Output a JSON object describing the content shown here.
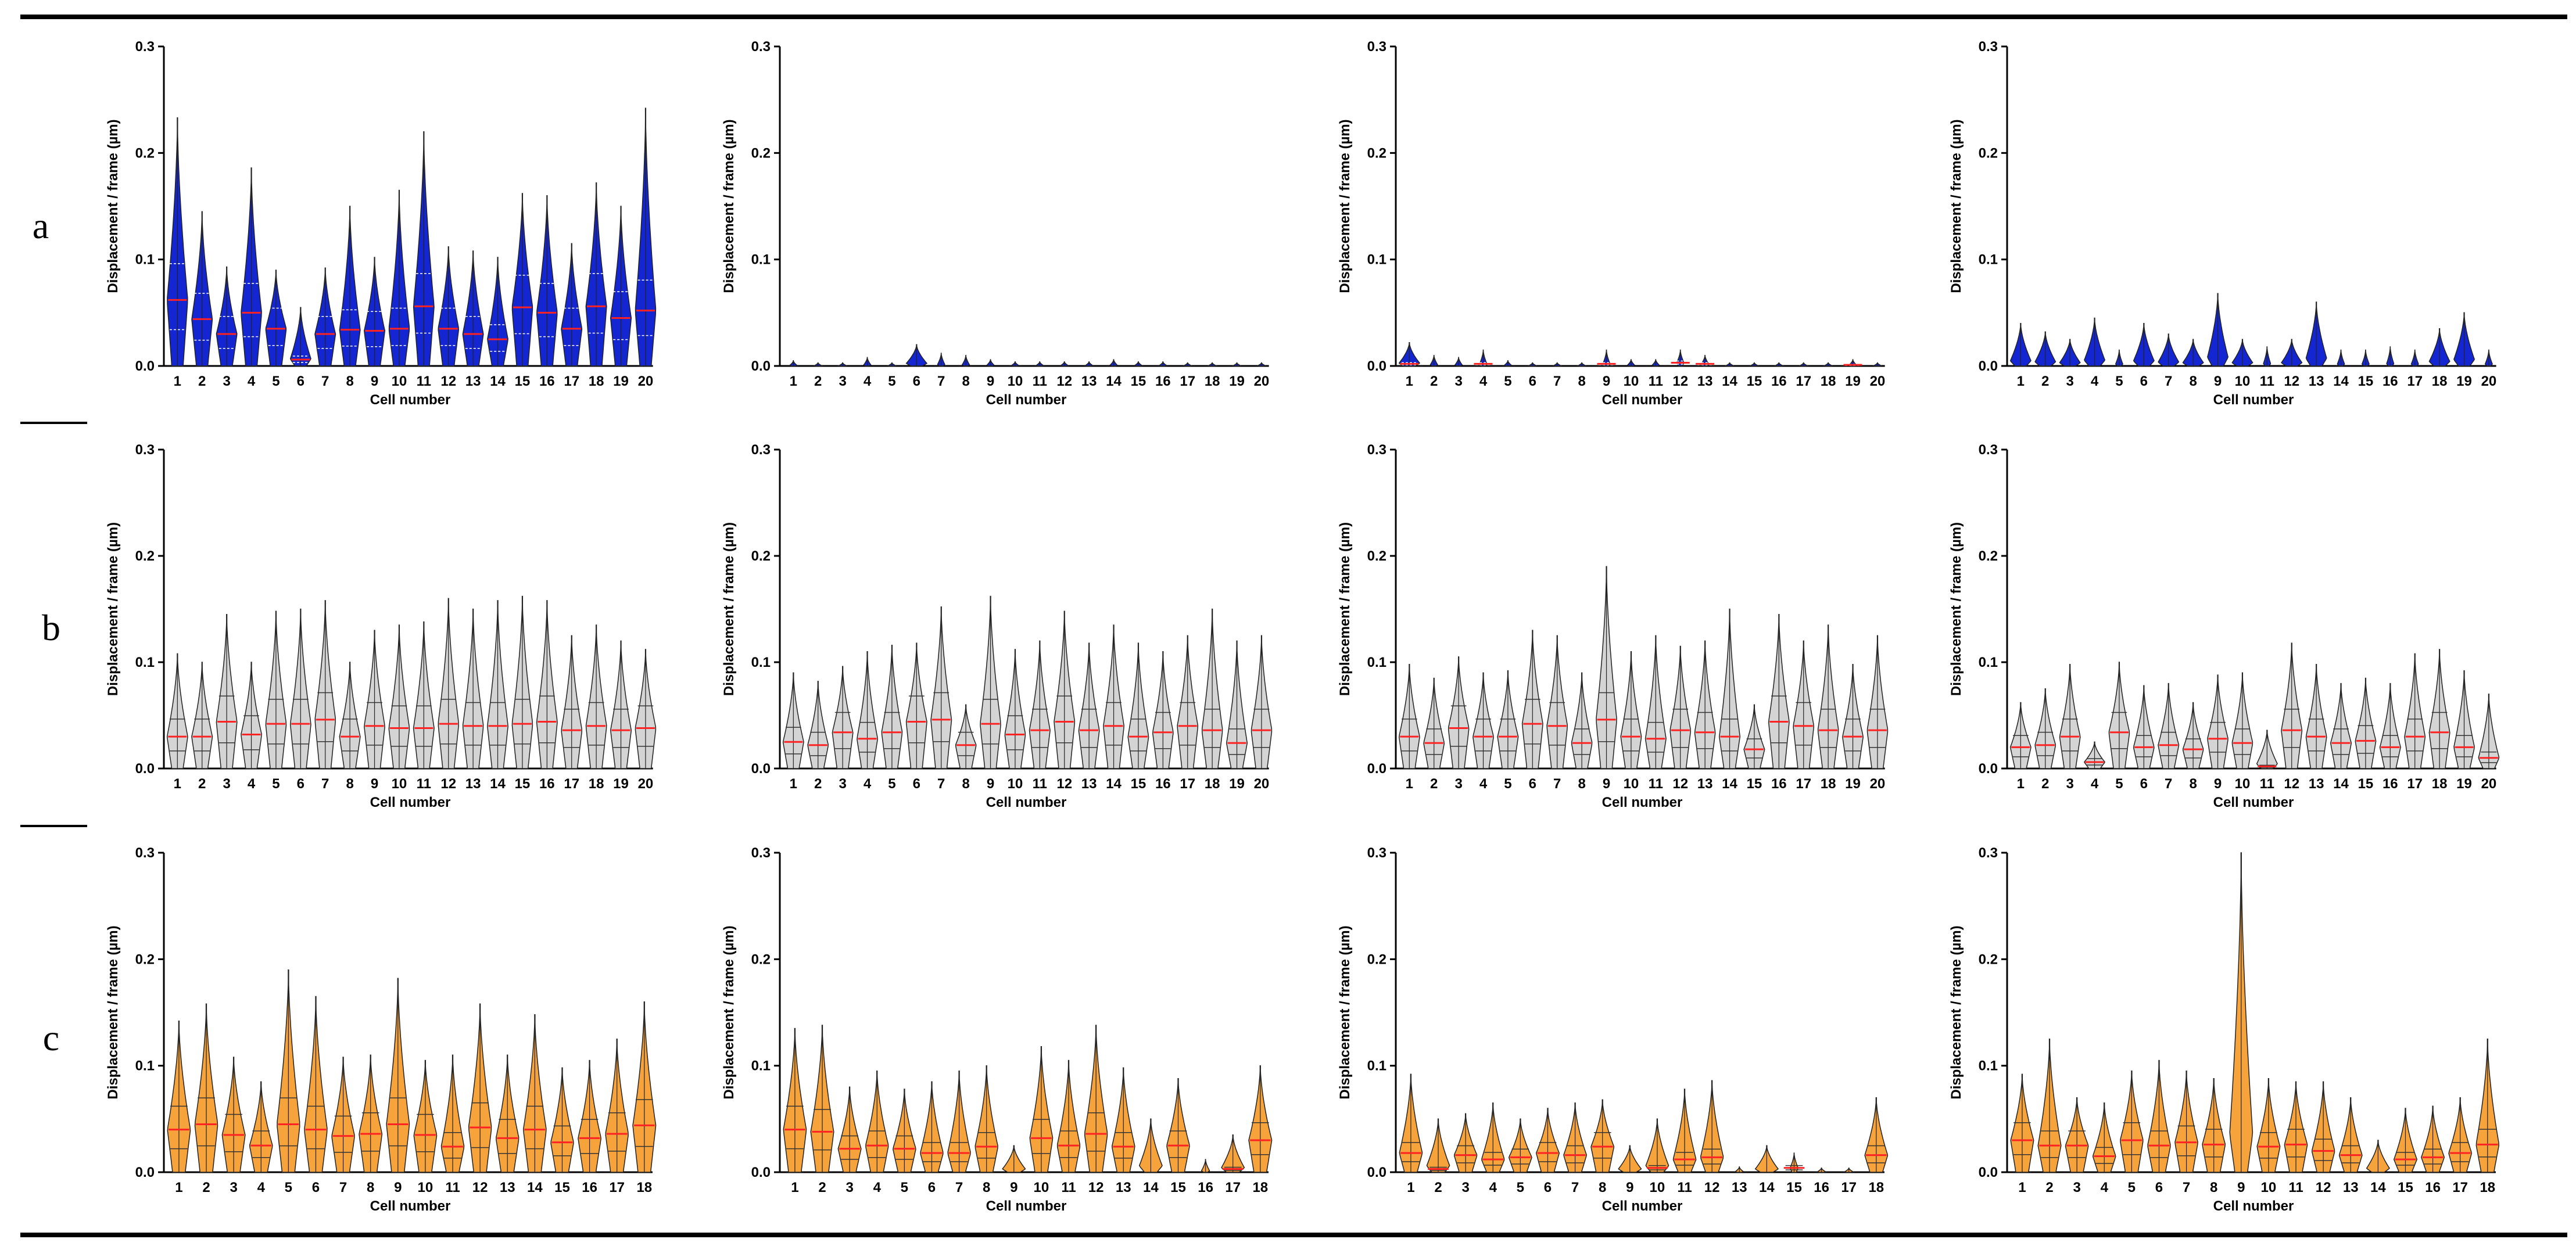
{
  "figure": {
    "row_labels": [
      "a",
      "b",
      "c"
    ],
    "common": {
      "xlabel": "Cell number",
      "ylabel": "Displacement / frame (µm)",
      "ylim": [
        0,
        0.3
      ],
      "yticks": [
        "0.0",
        "0.1",
        "0.2",
        "0.3"
      ]
    },
    "colors": {
      "blue": "#1426d2",
      "gray": "#d4d4d4",
      "orange": "#f7a33b",
      "median": "#ff2222",
      "quartile_blue": "#ffffff",
      "quartile": "#333333",
      "outline": "#222222",
      "rule": "#000000"
    }
  },
  "chart_data": [
    {
      "row": "a",
      "col": 1,
      "type": "violin",
      "fill": "blue",
      "title": "",
      "xlabel": "Cell number",
      "ylabel": "Displacement / frame (µm)",
      "ylim": [
        0,
        0.3
      ],
      "categories": [
        "1",
        "2",
        "3",
        "4",
        "5",
        "6",
        "7",
        "8",
        "9",
        "10",
        "11",
        "12",
        "13",
        "14",
        "15",
        "16",
        "17",
        "18",
        "19",
        "20"
      ],
      "medians": [
        0.062,
        0.044,
        0.03,
        0.05,
        0.035,
        0.006,
        0.03,
        0.034,
        0.033,
        0.035,
        0.056,
        0.035,
        0.03,
        0.025,
        0.055,
        0.05,
        0.035,
        0.056,
        0.045,
        0.052
      ],
      "maxes": [
        0.233,
        0.145,
        0.093,
        0.186,
        0.09,
        0.055,
        0.092,
        0.15,
        0.102,
        0.165,
        0.22,
        0.112,
        0.108,
        0.102,
        0.162,
        0.16,
        0.115,
        0.172,
        0.15,
        0.242
      ]
    },
    {
      "row": "a",
      "col": 2,
      "type": "violin",
      "fill": "blue",
      "title": "",
      "xlabel": "Cell number",
      "ylabel": "Displacement / frame (µm)",
      "ylim": [
        0,
        0.3
      ],
      "categories": [
        "1",
        "2",
        "3",
        "4",
        "5",
        "6",
        "7",
        "8",
        "9",
        "10",
        "11",
        "12",
        "13",
        "14",
        "15",
        "16",
        "17",
        "18",
        "19",
        "20"
      ],
      "medians": [
        0,
        0,
        0,
        0,
        0,
        0,
        0,
        0,
        0,
        0,
        0,
        0,
        0,
        0,
        0,
        0,
        0,
        0,
        0,
        0
      ],
      "maxes": [
        0.005,
        0.003,
        0.003,
        0.008,
        0.003,
        0.02,
        0.012,
        0.01,
        0.006,
        0.004,
        0.004,
        0.004,
        0.004,
        0.006,
        0.004,
        0.004,
        0.003,
        0.003,
        0.003,
        0.003
      ]
    },
    {
      "row": "a",
      "col": 3,
      "type": "violin",
      "fill": "blue",
      "title": "",
      "xlabel": "Cell number",
      "ylabel": "Displacement / frame (µm)",
      "ylim": [
        0,
        0.3
      ],
      "categories": [
        "1",
        "2",
        "3",
        "4",
        "5",
        "6",
        "7",
        "8",
        "9",
        "10",
        "11",
        "12",
        "13",
        "14",
        "15",
        "16",
        "17",
        "18",
        "19",
        "20"
      ],
      "medians": [
        0.002,
        0,
        0,
        0.002,
        0,
        0,
        0,
        0,
        0.002,
        0,
        0,
        0.003,
        0.002,
        0,
        0,
        0,
        0,
        0,
        0.001,
        0
      ],
      "maxes": [
        0.022,
        0.01,
        0.008,
        0.015,
        0.005,
        0.003,
        0.003,
        0.003,
        0.015,
        0.006,
        0.006,
        0.015,
        0.01,
        0.003,
        0.003,
        0.003,
        0.003,
        0.003,
        0.006,
        0.003
      ]
    },
    {
      "row": "a",
      "col": 4,
      "type": "violin",
      "fill": "blue",
      "title": "",
      "xlabel": "Cell number",
      "ylabel": "Displacement / frame (µm)",
      "ylim": [
        0,
        0.3
      ],
      "categories": [
        "1",
        "2",
        "3",
        "4",
        "5",
        "6",
        "7",
        "8",
        "9",
        "10",
        "11",
        "12",
        "13",
        "14",
        "15",
        "16",
        "17",
        "18",
        "19",
        "20"
      ],
      "medians": [
        0,
        0,
        0,
        0,
        0,
        0,
        0,
        0,
        0,
        0,
        0,
        0,
        0,
        0,
        0,
        0,
        0,
        0,
        0,
        0
      ],
      "maxes": [
        0.04,
        0.032,
        0.025,
        0.045,
        0.015,
        0.04,
        0.03,
        0.025,
        0.068,
        0.025,
        0.018,
        0.025,
        0.06,
        0.015,
        0.015,
        0.018,
        0.015,
        0.035,
        0.05,
        0.015
      ]
    },
    {
      "row": "b",
      "col": 1,
      "type": "violin",
      "fill": "gray",
      "title": "",
      "xlabel": "Cell number",
      "ylabel": "Displacement / frame (µm)",
      "ylim": [
        0,
        0.3
      ],
      "categories": [
        "1",
        "2",
        "3",
        "4",
        "5",
        "6",
        "7",
        "8",
        "9",
        "10",
        "11",
        "12",
        "13",
        "14",
        "15",
        "16",
        "17",
        "18",
        "19",
        "20"
      ],
      "medians": [
        0.03,
        0.03,
        0.044,
        0.032,
        0.042,
        0.042,
        0.046,
        0.03,
        0.04,
        0.038,
        0.038,
        0.042,
        0.04,
        0.04,
        0.042,
        0.044,
        0.036,
        0.04,
        0.036,
        0.038
      ],
      "maxes": [
        0.108,
        0.1,
        0.145,
        0.1,
        0.148,
        0.15,
        0.158,
        0.1,
        0.13,
        0.135,
        0.138,
        0.16,
        0.15,
        0.158,
        0.162,
        0.158,
        0.125,
        0.135,
        0.12,
        0.112
      ]
    },
    {
      "row": "b",
      "col": 2,
      "type": "violin",
      "fill": "gray",
      "title": "",
      "xlabel": "Cell number",
      "ylabel": "Displacement / frame (µm)",
      "ylim": [
        0,
        0.3
      ],
      "categories": [
        "1",
        "2",
        "3",
        "4",
        "5",
        "6",
        "7",
        "8",
        "9",
        "10",
        "11",
        "12",
        "13",
        "14",
        "15",
        "16",
        "17",
        "18",
        "19",
        "20"
      ],
      "medians": [
        0.025,
        0.022,
        0.034,
        0.028,
        0.034,
        0.044,
        0.046,
        0.022,
        0.042,
        0.032,
        0.036,
        0.044,
        0.036,
        0.04,
        0.03,
        0.034,
        0.04,
        0.036,
        0.024,
        0.036
      ],
      "maxes": [
        0.09,
        0.082,
        0.096,
        0.11,
        0.116,
        0.118,
        0.152,
        0.06,
        0.162,
        0.112,
        0.12,
        0.148,
        0.118,
        0.135,
        0.118,
        0.11,
        0.125,
        0.15,
        0.12,
        0.125
      ]
    },
    {
      "row": "b",
      "col": 3,
      "type": "violin",
      "fill": "gray",
      "title": "",
      "xlabel": "Cell number",
      "ylabel": "Displacement / frame (µm)",
      "ylim": [
        0,
        0.3
      ],
      "categories": [
        "1",
        "2",
        "3",
        "4",
        "5",
        "6",
        "7",
        "8",
        "9",
        "10",
        "11",
        "12",
        "13",
        "14",
        "15",
        "16",
        "17",
        "18",
        "19",
        "20"
      ],
      "medians": [
        0.03,
        0.024,
        0.038,
        0.03,
        0.03,
        0.042,
        0.04,
        0.024,
        0.046,
        0.03,
        0.028,
        0.036,
        0.034,
        0.03,
        0.018,
        0.044,
        0.04,
        0.036,
        0.03,
        0.036
      ],
      "maxes": [
        0.098,
        0.085,
        0.105,
        0.09,
        0.092,
        0.13,
        0.125,
        0.09,
        0.19,
        0.11,
        0.125,
        0.115,
        0.12,
        0.15,
        0.06,
        0.145,
        0.12,
        0.135,
        0.098,
        0.125
      ]
    },
    {
      "row": "b",
      "col": 4,
      "type": "violin",
      "fill": "gray",
      "title": "",
      "xlabel": "Cell number",
      "ylabel": "Displacement / frame (µm)",
      "ylim": [
        0,
        0.3
      ],
      "categories": [
        "1",
        "2",
        "3",
        "4",
        "5",
        "6",
        "7",
        "8",
        "9",
        "10",
        "11",
        "12",
        "13",
        "14",
        "15",
        "16",
        "17",
        "18",
        "19",
        "20"
      ],
      "medians": [
        0.02,
        0.022,
        0.03,
        0.006,
        0.034,
        0.02,
        0.022,
        0.018,
        0.028,
        0.024,
        0.002,
        0.036,
        0.03,
        0.024,
        0.026,
        0.02,
        0.03,
        0.034,
        0.02,
        0.01
      ],
      "maxes": [
        0.062,
        0.075,
        0.098,
        0.025,
        0.1,
        0.078,
        0.08,
        0.062,
        0.088,
        0.09,
        0.036,
        0.118,
        0.098,
        0.08,
        0.085,
        0.08,
        0.108,
        0.112,
        0.092,
        0.07
      ]
    },
    {
      "row": "c",
      "col": 1,
      "type": "violin",
      "fill": "orange",
      "title": "",
      "xlabel": "Cell number",
      "ylabel": "Displacement / frame (µm)",
      "ylim": [
        0,
        0.3
      ],
      "categories": [
        "1",
        "2",
        "3",
        "4",
        "5",
        "6",
        "7",
        "8",
        "9",
        "10",
        "11",
        "12",
        "13",
        "14",
        "15",
        "16",
        "17",
        "18"
      ],
      "medians": [
        0.04,
        0.045,
        0.035,
        0.025,
        0.045,
        0.04,
        0.034,
        0.036,
        0.045,
        0.035,
        0.024,
        0.042,
        0.032,
        0.04,
        0.028,
        0.032,
        0.036,
        0.044
      ],
      "maxes": [
        0.142,
        0.158,
        0.108,
        0.085,
        0.19,
        0.165,
        0.108,
        0.11,
        0.182,
        0.105,
        0.11,
        0.158,
        0.11,
        0.148,
        0.098,
        0.105,
        0.125,
        0.16
      ]
    },
    {
      "row": "c",
      "col": 2,
      "type": "violin",
      "fill": "orange",
      "title": "",
      "xlabel": "Cell number",
      "ylabel": "Displacement / frame (µm)",
      "ylim": [
        0,
        0.3
      ],
      "categories": [
        "1",
        "2",
        "3",
        "4",
        "5",
        "6",
        "7",
        "8",
        "9",
        "10",
        "11",
        "12",
        "13",
        "14",
        "15",
        "16",
        "17",
        "18"
      ],
      "medians": [
        0.04,
        0.038,
        0.022,
        0.025,
        0.022,
        0.018,
        0.018,
        0.024,
        0,
        0.032,
        0.025,
        0.036,
        0.024,
        0,
        0.025,
        0,
        0.003,
        0.03
      ],
      "maxes": [
        0.135,
        0.138,
        0.08,
        0.095,
        0.078,
        0.085,
        0.095,
        0.1,
        0.025,
        0.118,
        0.105,
        0.138,
        0.098,
        0.05,
        0.088,
        0.012,
        0.035,
        0.1
      ]
    },
    {
      "row": "c",
      "col": 3,
      "type": "violin",
      "fill": "orange",
      "title": "",
      "xlabel": "Cell number",
      "ylabel": "Displacement / frame (µm)",
      "ylim": [
        0,
        0.3
      ],
      "categories": [
        "1",
        "2",
        "3",
        "4",
        "5",
        "6",
        "7",
        "8",
        "9",
        "10",
        "11",
        "12",
        "13",
        "14",
        "15",
        "16",
        "17",
        "18"
      ],
      "medians": [
        0.018,
        0.003,
        0.016,
        0.012,
        0.014,
        0.018,
        0.016,
        0.024,
        0,
        0.004,
        0.012,
        0.014,
        0,
        0,
        0.004,
        0,
        0,
        0.016
      ],
      "maxes": [
        0.092,
        0.05,
        0.055,
        0.065,
        0.05,
        0.06,
        0.065,
        0.068,
        0.025,
        0.05,
        0.078,
        0.086,
        0.005,
        0.025,
        0.018,
        0.004,
        0.004,
        0.07
      ]
    },
    {
      "row": "c",
      "col": 4,
      "type": "violin",
      "fill": "orange",
      "title": "",
      "xlabel": "Cell number",
      "ylabel": "Displacement / frame (µm)",
      "ylim": [
        0,
        0.3
      ],
      "categories": [
        "1",
        "2",
        "3",
        "4",
        "5",
        "6",
        "7",
        "8",
        "9",
        "10",
        "11",
        "12",
        "13",
        "14",
        "15",
        "16",
        "17",
        "18"
      ],
      "medians": [
        0.03,
        0.025,
        0.025,
        0.015,
        0.03,
        0.025,
        0.028,
        0.026,
        0,
        0.024,
        0.026,
        0.02,
        0.016,
        0,
        0.012,
        0.014,
        0.018,
        0.026
      ],
      "maxes": [
        0.092,
        0.125,
        0.07,
        0.065,
        0.095,
        0.105,
        0.095,
        0.088,
        0.3,
        0.088,
        0.085,
        0.085,
        0.07,
        0.03,
        0.06,
        0.062,
        0.07,
        0.125
      ]
    }
  ]
}
